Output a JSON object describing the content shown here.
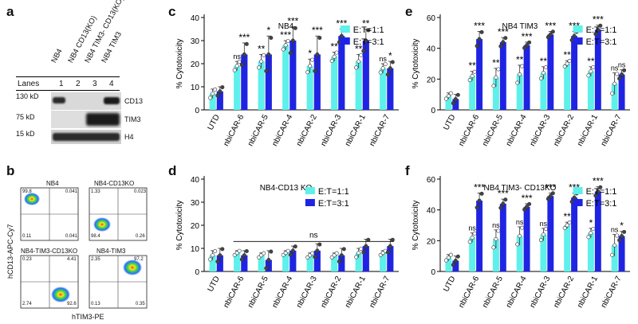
{
  "panels": {
    "a": "a",
    "b": "b",
    "c": "c",
    "d": "d",
    "e": "e",
    "f": "f"
  },
  "western": {
    "lanes_label": "Lanes",
    "lane_numbers": [
      "1",
      "2",
      "3",
      "4"
    ],
    "lane_names": [
      "NB4",
      "NB4 CD13(KO)",
      "NB4 TIM3- CD13(KO)",
      "NB4 TIM3"
    ],
    "bands": [
      {
        "kd": "130 kD",
        "protein": "CD13"
      },
      {
        "kd": "75 kD",
        "protein": "TIM3"
      },
      {
        "kd": "15 kD",
        "protein": "H4"
      }
    ]
  },
  "flow": {
    "y_label": "hCD13-APC-Cy7",
    "x_label": "hTIM3-PE",
    "plots": [
      {
        "title": "NB4",
        "q": [
          "99.8",
          "0.041",
          "0.11",
          "0.041"
        ]
      },
      {
        "title": "NB4-CD13KO",
        "q": [
          "1.33",
          "0.023",
          "98.4",
          "0.26"
        ]
      },
      {
        "title": "NB4-TIM3-CD13KO",
        "q": [
          "0.23",
          "4.41",
          "2.74",
          "92.6"
        ]
      },
      {
        "title": "NB4-TIM3",
        "q": [
          "2.35",
          "97.2",
          "0.13",
          "0.35"
        ]
      }
    ]
  },
  "legend": {
    "s1": "E:T=1:1",
    "s2": "E:T=3:1"
  },
  "colors": {
    "s1": "#5ef0ea",
    "s2": "#1f24e3"
  },
  "chart_data": [
    {
      "panel": "c",
      "type": "bar",
      "title": "NB4",
      "ylabel": "% Cytotoxicity",
      "ylim": [
        0,
        40
      ],
      "yticks": [
        0,
        10,
        20,
        30,
        40
      ],
      "categories": [
        "UTD",
        "nbiCAR-6",
        "nbiCAR-5",
        "nbiCAR-4",
        "nbiCAR-2",
        "nbiCAR-3",
        "nbiCAR-1",
        "nbiCAR-7"
      ],
      "series": [
        {
          "name": "E:T=1:1",
          "values": [
            7,
            19,
            21,
            28,
            19,
            23,
            21,
            18
          ],
          "errors": [
            2,
            2,
            3,
            2,
            3,
            2,
            3,
            2
          ],
          "sig": [
            "",
            "ns",
            "**",
            "***",
            "*",
            "**",
            "**",
            "ns"
          ]
        },
        {
          "name": "E:T=3:1",
          "values": [
            8,
            24,
            24,
            30,
            24,
            32,
            30,
            18
          ],
          "errors": [
            2,
            5,
            8,
            6,
            8,
            3,
            5,
            3
          ],
          "sig": [
            "",
            "***",
            "*",
            "***",
            "***",
            "***",
            "**",
            "*"
          ]
        }
      ]
    },
    {
      "panel": "d",
      "type": "bar",
      "title": "NB4-CD13 KO",
      "ylabel": "% Cytotoxicity",
      "ylim": [
        0,
        40
      ],
      "yticks": [
        0,
        10,
        20,
        30,
        40
      ],
      "categories": [
        "UTD",
        "nbiCAR-6",
        "nbiCAR-5",
        "nbiCAR-4",
        "nbiCAR-3",
        "nbiCAR-2",
        "nbiCAR-1",
        "nbiCAR-7"
      ],
      "bracket_label": "ns",
      "series": [
        {
          "name": "E:T=1:1",
          "values": [
            7,
            8,
            7,
            8,
            7,
            7,
            8,
            8
          ],
          "errors": [
            2,
            1,
            1,
            1,
            1,
            1,
            2,
            1
          ],
          "sig": []
        },
        {
          "name": "E:T=3:1",
          "values": [
            7,
            7,
            5,
            9,
            9,
            7,
            11,
            11
          ],
          "errors": [
            3,
            2,
            4,
            2,
            3,
            3,
            3,
            3
          ],
          "sig": []
        }
      ]
    },
    {
      "panel": "e",
      "type": "bar",
      "title": "NB4 TIM3",
      "ylabel": "% Cytotoxicity",
      "ylim": [
        0,
        60
      ],
      "yticks": [
        0,
        20,
        40,
        60
      ],
      "categories": [
        "UTD",
        "nbiCAR-6",
        "nbiCAR-5",
        "nbiCAR-4",
        "nbiCAR-3",
        "nbiCAR-2",
        "nbiCAR-1",
        "nbiCAR-7"
      ],
      "series": [
        {
          "name": "E:T=1:1",
          "values": [
            9,
            22,
            21,
            23,
            24,
            30,
            25,
            17
          ],
          "errors": [
            2,
            3,
            6,
            6,
            4,
            2,
            3,
            7
          ],
          "sig": [
            "",
            "**",
            "**",
            "**",
            "**",
            "**",
            "**",
            "ns"
          ]
        },
        {
          "name": "E:T=3:1",
          "values": [
            7,
            46,
            44,
            42,
            49,
            48,
            52,
            23
          ],
          "errors": [
            3,
            5,
            3,
            2,
            2,
            3,
            3,
            3
          ],
          "sig": [
            "",
            "***",
            "***",
            "***",
            "***",
            "***",
            "***",
            "ns"
          ]
        }
      ]
    },
    {
      "panel": "f",
      "type": "bar",
      "title": "NB4 TIM3- CD13KO",
      "ylabel": "% Cytotoxicity",
      "ylim": [
        0,
        60
      ],
      "yticks": [
        0,
        20,
        40,
        60
      ],
      "categories": [
        "UTD",
        "nbiCAR-6",
        "nbiCAR-5",
        "nbiCAR-4",
        "nbiCAR-3",
        "nbiCAR-2",
        "nbiCAR-1",
        "nbiCAR-7"
      ],
      "series": [
        {
          "name": "E:T=1:1",
          "values": [
            9,
            22,
            21,
            23,
            24,
            30,
            25,
            17
          ],
          "errors": [
            2,
            3,
            6,
            6,
            4,
            2,
            3,
            7
          ],
          "sig": [
            "",
            "ns",
            "ns",
            "ns",
            "ns",
            "**",
            "*",
            "ns"
          ]
        },
        {
          "name": "E:T=3:1",
          "values": [
            7,
            46,
            44,
            42,
            49,
            48,
            52,
            23
          ],
          "errors": [
            3,
            5,
            3,
            2,
            2,
            3,
            3,
            3
          ],
          "sig": [
            "",
            "***",
            "***",
            "***",
            "***",
            "***",
            "***",
            "*"
          ]
        }
      ]
    }
  ]
}
